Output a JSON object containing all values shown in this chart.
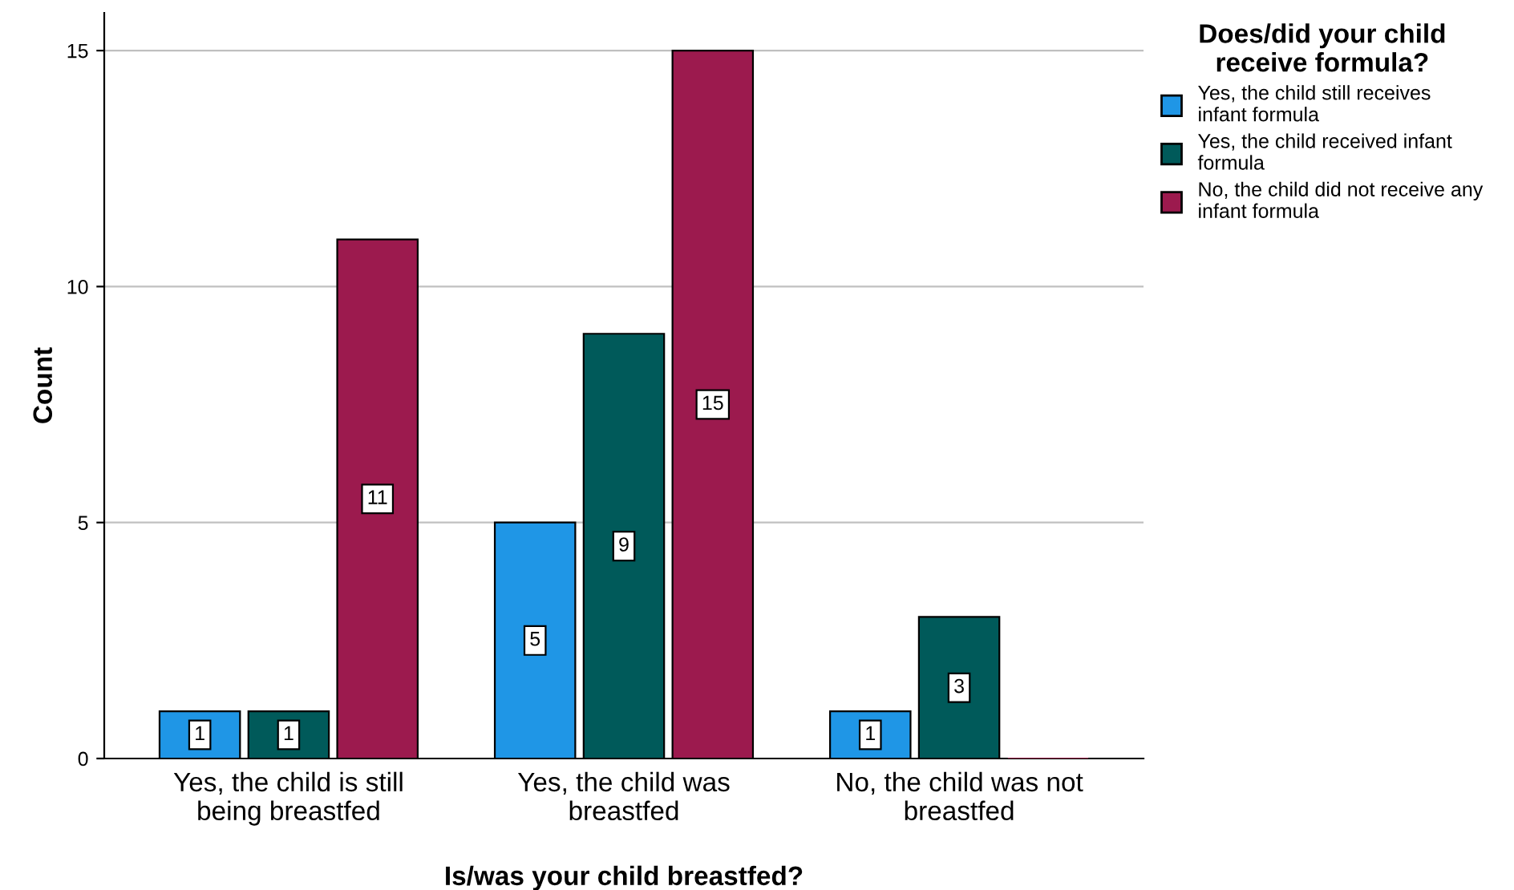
{
  "chart_data": {
    "type": "bar",
    "xlabel": "Is/was your child breastfed?",
    "ylabel": "Count",
    "legend_title": "Does/did your child\nreceive formula?",
    "categories": [
      "Yes, the child is still\nbeing breastfed",
      "Yes, the child was\nbreastfed",
      "No, the child was not\nbreastfed"
    ],
    "series": [
      {
        "name": "Yes, the child still receives\ninfant formula",
        "color": "#1f96e6",
        "values": [
          1,
          5,
          1
        ],
        "value_labels": [
          "1",
          "5",
          "1"
        ]
      },
      {
        "name": "Yes, the child received infant\nformula",
        "color": "#005a5a",
        "values": [
          1,
          9,
          3
        ],
        "value_labels": [
          "1",
          "9",
          "3"
        ]
      },
      {
        "name": "No, the child did not receive any\ninfant formula",
        "color": "#9c1a4e",
        "values": [
          11,
          15,
          0
        ],
        "value_labels": [
          "11",
          "15",
          null
        ]
      }
    ],
    "ylim": [
      0,
      15.8
    ],
    "yticks": [
      0,
      5,
      10,
      15
    ],
    "grid": "y",
    "legend": "top right"
  }
}
